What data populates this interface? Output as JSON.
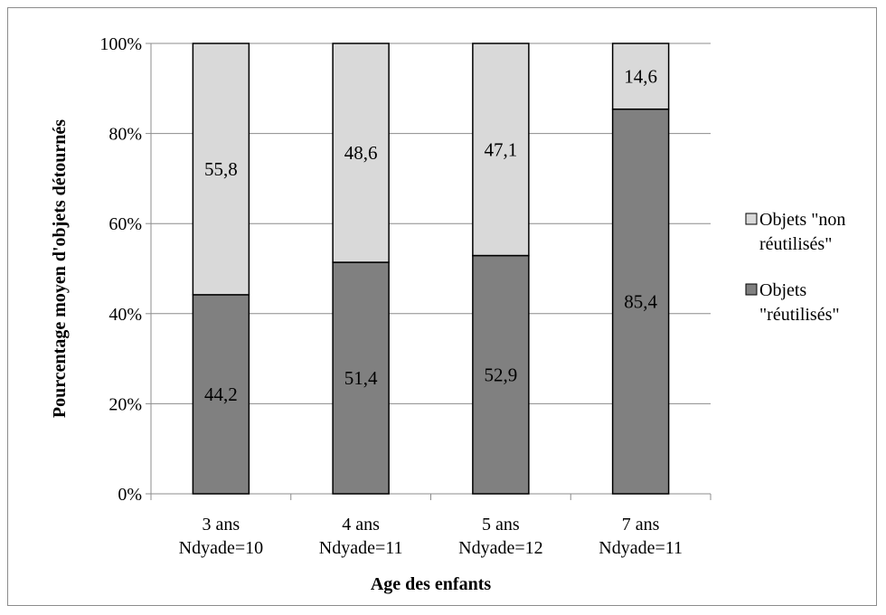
{
  "chart_data": {
    "type": "bar",
    "stacked": true,
    "normalized_percent": true,
    "categories": [
      [
        "3 ans",
        "Ndyade=10"
      ],
      [
        "4 ans",
        "Ndyade=11"
      ],
      [
        "5 ans",
        "Ndyade=12"
      ],
      [
        "7 ans",
        "Ndyade=11"
      ]
    ],
    "series": [
      {
        "name": "Objets \"réutilisés\"",
        "legend_lines": [
          "Objets",
          "\"réutilisés\""
        ],
        "values": [
          44.2,
          51.4,
          52.9,
          85.4
        ],
        "labels": [
          "44,2",
          "51,4",
          "52,9",
          "85,4"
        ],
        "color": "#808080"
      },
      {
        "name": "Objets \"non réutilisés\"",
        "legend_lines": [
          "Objets \"non",
          "réutilisés\""
        ],
        "values": [
          55.8,
          48.6,
          47.1,
          14.6
        ],
        "labels": [
          "55,8",
          "48,6",
          "47,1",
          "14,6"
        ],
        "color": "#d9d9d9"
      }
    ],
    "xlabel": "Age des enfants",
    "ylabel": "Pourcentage moyen d'objets détournés",
    "ylim": [
      0,
      100
    ],
    "yticks": [
      "0%",
      "20%",
      "40%",
      "60%",
      "80%",
      "100%"
    ],
    "grid": true,
    "legend_position": "right"
  }
}
